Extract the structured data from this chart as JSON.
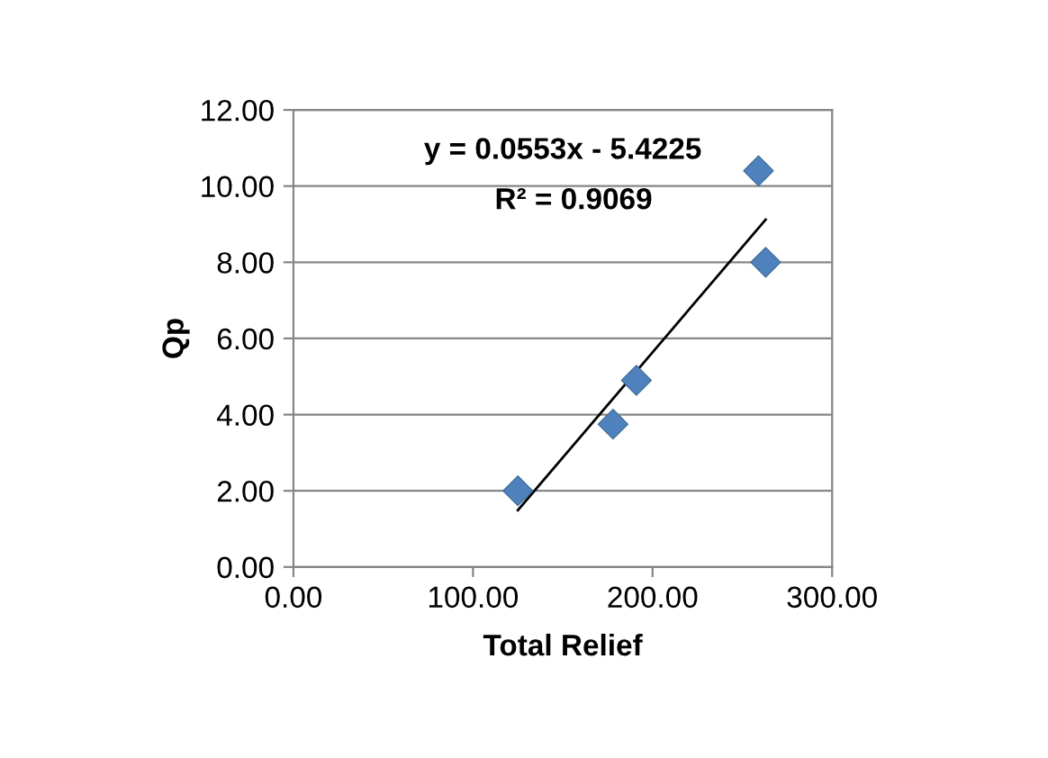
{
  "chart_data": {
    "type": "scatter",
    "xlabel": "Total Relief",
    "ylabel": "Qp",
    "series": [
      {
        "color": "#4f81bd",
        "marker": "diamond",
        "x": [
          125,
          178,
          191,
          259,
          263
        ],
        "values": [
          2.0,
          3.75,
          4.9,
          10.4,
          8.0
        ]
      },
      {
        "type": "line",
        "color": "#000000",
        "marker": "none",
        "line_style": "solid",
        "x": [
          125,
          263
        ],
        "values": [
          1.49,
          9.12
        ]
      }
    ],
    "annotations": [
      "y = 0.0553x - 5.4225",
      "R² = 0.9069"
    ],
    "xlim": [
      0,
      300
    ],
    "ylim": [
      0,
      12
    ],
    "xticks": [
      {
        "value": 0,
        "label": "0.00"
      },
      {
        "value": 100,
        "label": "100.00"
      },
      {
        "value": 200,
        "label": "200.00"
      },
      {
        "value": 300,
        "label": "300.00"
      }
    ],
    "yticks": [
      {
        "value": 0,
        "label": "0.00"
      },
      {
        "value": 2,
        "label": "2.00"
      },
      {
        "value": 4,
        "label": "4.00"
      },
      {
        "value": 6,
        "label": "6.00"
      },
      {
        "value": 8,
        "label": "8.00"
      },
      {
        "value": 10,
        "label": "10.00"
      },
      {
        "value": 12,
        "label": "12.00"
      }
    ],
    "grid": "y",
    "legend": false
  }
}
